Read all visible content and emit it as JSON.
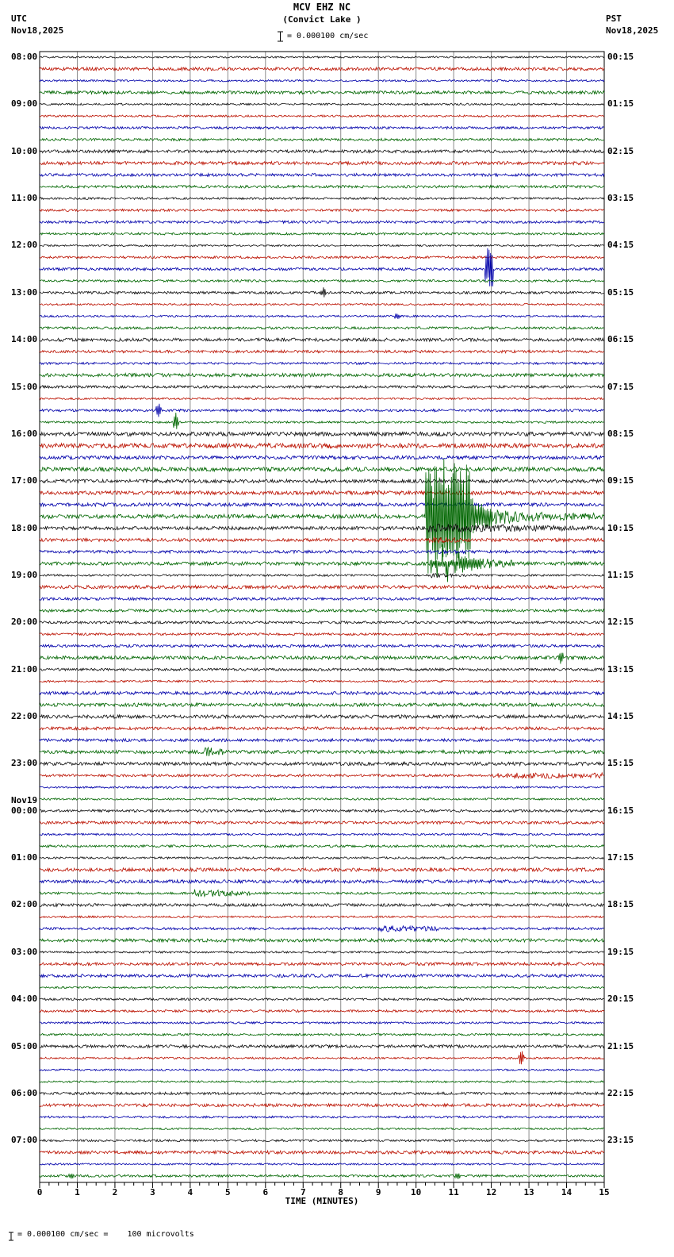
{
  "header": {
    "title": "MCV EHZ NC",
    "subtitle": "(Convict Lake )",
    "scale_label": "= 0.000100 cm/sec",
    "left_tz": "UTC",
    "left_date": "Nov18,2025",
    "right_tz": "PST",
    "right_date": "Nov18,2025"
  },
  "footer": {
    "axis_label": "TIME (MINUTES)",
    "note": "= 0.000100 cm/sec =    100 microvolts"
  },
  "chart_data": {
    "type": "line",
    "kind": "helicorder-seismogram",
    "station": "MCV EHZ NC",
    "station_name": "Convict Lake",
    "amplitude_scale": "1 division = 0.000100 cm/sec = 100 microvolts",
    "minutes_per_line": 15,
    "lines_per_hour": 4,
    "x_axis": {
      "label": "TIME (MINUTES)",
      "min": 0,
      "max": 15,
      "ticks": [
        0,
        1,
        2,
        3,
        4,
        5,
        6,
        7,
        8,
        9,
        10,
        11,
        12,
        13,
        14,
        15
      ]
    },
    "color_cycle": [
      "black",
      "red",
      "blue",
      "green"
    ],
    "trace_colors": {
      "black": "#111111",
      "red": "#bb1100",
      "blue": "#0000aa",
      "green": "#006600"
    },
    "hours": [
      {
        "utc": "08:00",
        "pst": "00:15"
      },
      {
        "utc": "09:00",
        "pst": "01:15"
      },
      {
        "utc": "10:00",
        "pst": "02:15"
      },
      {
        "utc": "11:00",
        "pst": "03:15"
      },
      {
        "utc": "12:00",
        "pst": "04:15"
      },
      {
        "utc": "13:00",
        "pst": "05:15"
      },
      {
        "utc": "14:00",
        "pst": "06:15"
      },
      {
        "utc": "15:00",
        "pst": "07:15"
      },
      {
        "utc": "16:00",
        "pst": "08:15"
      },
      {
        "utc": "17:00",
        "pst": "09:15"
      },
      {
        "utc": "18:00",
        "pst": "10:15"
      },
      {
        "utc": "19:00",
        "pst": "11:15"
      },
      {
        "utc": "20:00",
        "pst": "12:15"
      },
      {
        "utc": "21:00",
        "pst": "13:15"
      },
      {
        "utc": "22:00",
        "pst": "14:15"
      },
      {
        "utc": "23:00",
        "pst": "15:15"
      },
      {
        "utc": "00:00",
        "pst": "16:15",
        "prefix": "Nov19"
      },
      {
        "utc": "01:00",
        "pst": "17:15"
      },
      {
        "utc": "02:00",
        "pst": "18:15"
      },
      {
        "utc": "03:00",
        "pst": "19:15"
      },
      {
        "utc": "04:00",
        "pst": "20:15"
      },
      {
        "utc": "05:00",
        "pst": "21:15"
      },
      {
        "utc": "06:00",
        "pst": "22:15"
      },
      {
        "utc": "07:00",
        "pst": "23:15"
      }
    ],
    "base_amp_overrides": [
      {
        "trace": 32,
        "amp": 2.6
      },
      {
        "trace": 33,
        "amp": 3.0
      },
      {
        "trace": 34,
        "amp": 2.2
      },
      {
        "trace": 35,
        "amp": 2.6
      },
      {
        "trace": 36,
        "amp": 2.2
      },
      {
        "trace": 37,
        "amp": 2.4
      },
      {
        "trace": 38,
        "amp": 2.2
      },
      {
        "trace": 39,
        "amp": 2.6
      },
      {
        "trace": 40,
        "amp": 2.2
      },
      {
        "trace": 41,
        "amp": 2.0
      },
      {
        "trace": 43,
        "amp": 2.2
      }
    ],
    "events": [
      {
        "type": "spike",
        "trace": 18,
        "t": 11.9,
        "amp": 28
      },
      {
        "type": "spike",
        "trace": 18,
        "t": 11.99,
        "amp": 33
      },
      {
        "type": "spike",
        "trace": 20,
        "t": 7.55,
        "amp": 7
      },
      {
        "type": "spike",
        "trace": 22,
        "t": 9.5,
        "amp": 5
      },
      {
        "type": "spike",
        "trace": 30,
        "t": 3.17,
        "amp": 9
      },
      {
        "type": "spike",
        "trace": 31,
        "t": 3.62,
        "amp": 13
      },
      {
        "type": "burst",
        "trace": 39,
        "start": 10.25,
        "dense_end": 11.45,
        "end": 15,
        "amp": 82,
        "tail": 4
      },
      {
        "type": "fuzz",
        "trace": 40,
        "start": 10.3,
        "end": 15,
        "amp": 6,
        "amp_end": 2.5
      },
      {
        "type": "fuzz",
        "trace": 41,
        "start": 10.35,
        "end": 11.6,
        "amp": 4,
        "amp_end": 2
      },
      {
        "type": "fuzz",
        "trace": 42,
        "start": 10.4,
        "end": 11.3,
        "amp": 3,
        "amp_end": 2
      },
      {
        "type": "burst",
        "trace": 43,
        "start": 10.35,
        "dense_end": 11.15,
        "end": 12.6,
        "amp": 40,
        "tail": 3,
        "sparse": true
      },
      {
        "type": "fuzz",
        "trace": 44,
        "start": 10.4,
        "end": 11.4,
        "amp": 3,
        "amp_end": 1.5
      },
      {
        "type": "spike",
        "trace": 51,
        "t": 13.85,
        "amp": 9
      },
      {
        "type": "fuzz",
        "trace": 59,
        "start": 4.35,
        "end": 4.9,
        "amp": 6,
        "amp_end": 4
      },
      {
        "type": "fuzz",
        "trace": 61,
        "start": 12.0,
        "end": 15,
        "amp": 3.5,
        "amp_end": 3.5
      },
      {
        "type": "fuzz",
        "trace": 71,
        "start": 4.1,
        "end": 5.6,
        "amp": 5,
        "amp_end": 3
      },
      {
        "type": "fuzz",
        "trace": 74,
        "start": 9.0,
        "end": 10.6,
        "amp": 4,
        "amp_end": 3
      },
      {
        "type": "spike",
        "trace": 85,
        "t": 12.8,
        "amp": 11
      },
      {
        "type": "spike",
        "trace": 95,
        "t": 0.85,
        "amp": 4
      },
      {
        "type": "spike",
        "trace": 95,
        "t": 11.1,
        "amp": 5
      }
    ]
  }
}
